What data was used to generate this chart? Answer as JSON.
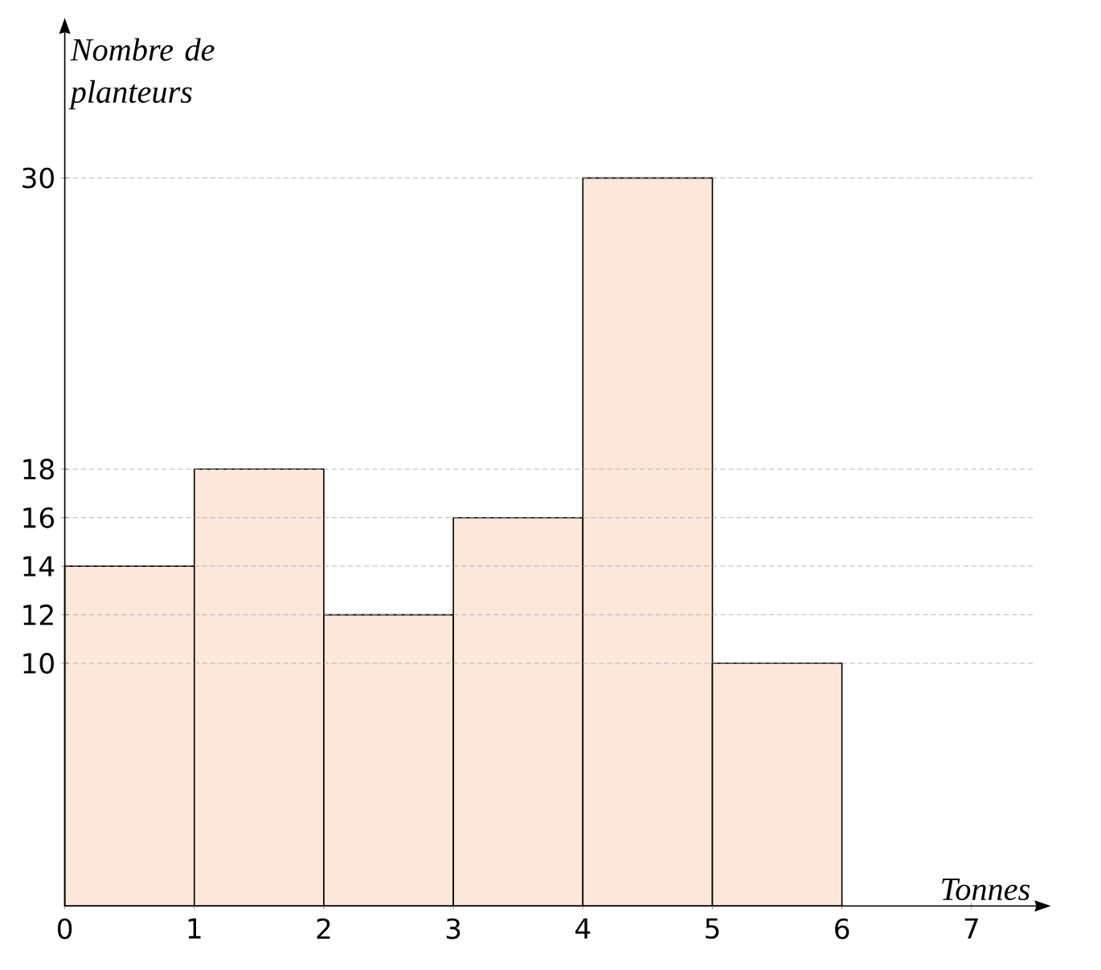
{
  "chart_data": {
    "type": "histogram",
    "xlabel": "Tonnes",
    "ylabel": "Nombre de planteurs",
    "bins": [
      0,
      1,
      2,
      3,
      4,
      5,
      6
    ],
    "values": [
      14,
      18,
      12,
      16,
      30,
      10
    ],
    "color": "#fce7d9",
    "xlim": [
      0,
      7.5
    ],
    "ylim": [
      0,
      36
    ],
    "xticks": [
      0,
      1,
      2,
      3,
      4,
      5,
      6,
      7
    ],
    "yticks": [
      10,
      12,
      14,
      16,
      18,
      30
    ],
    "grid": "y"
  }
}
